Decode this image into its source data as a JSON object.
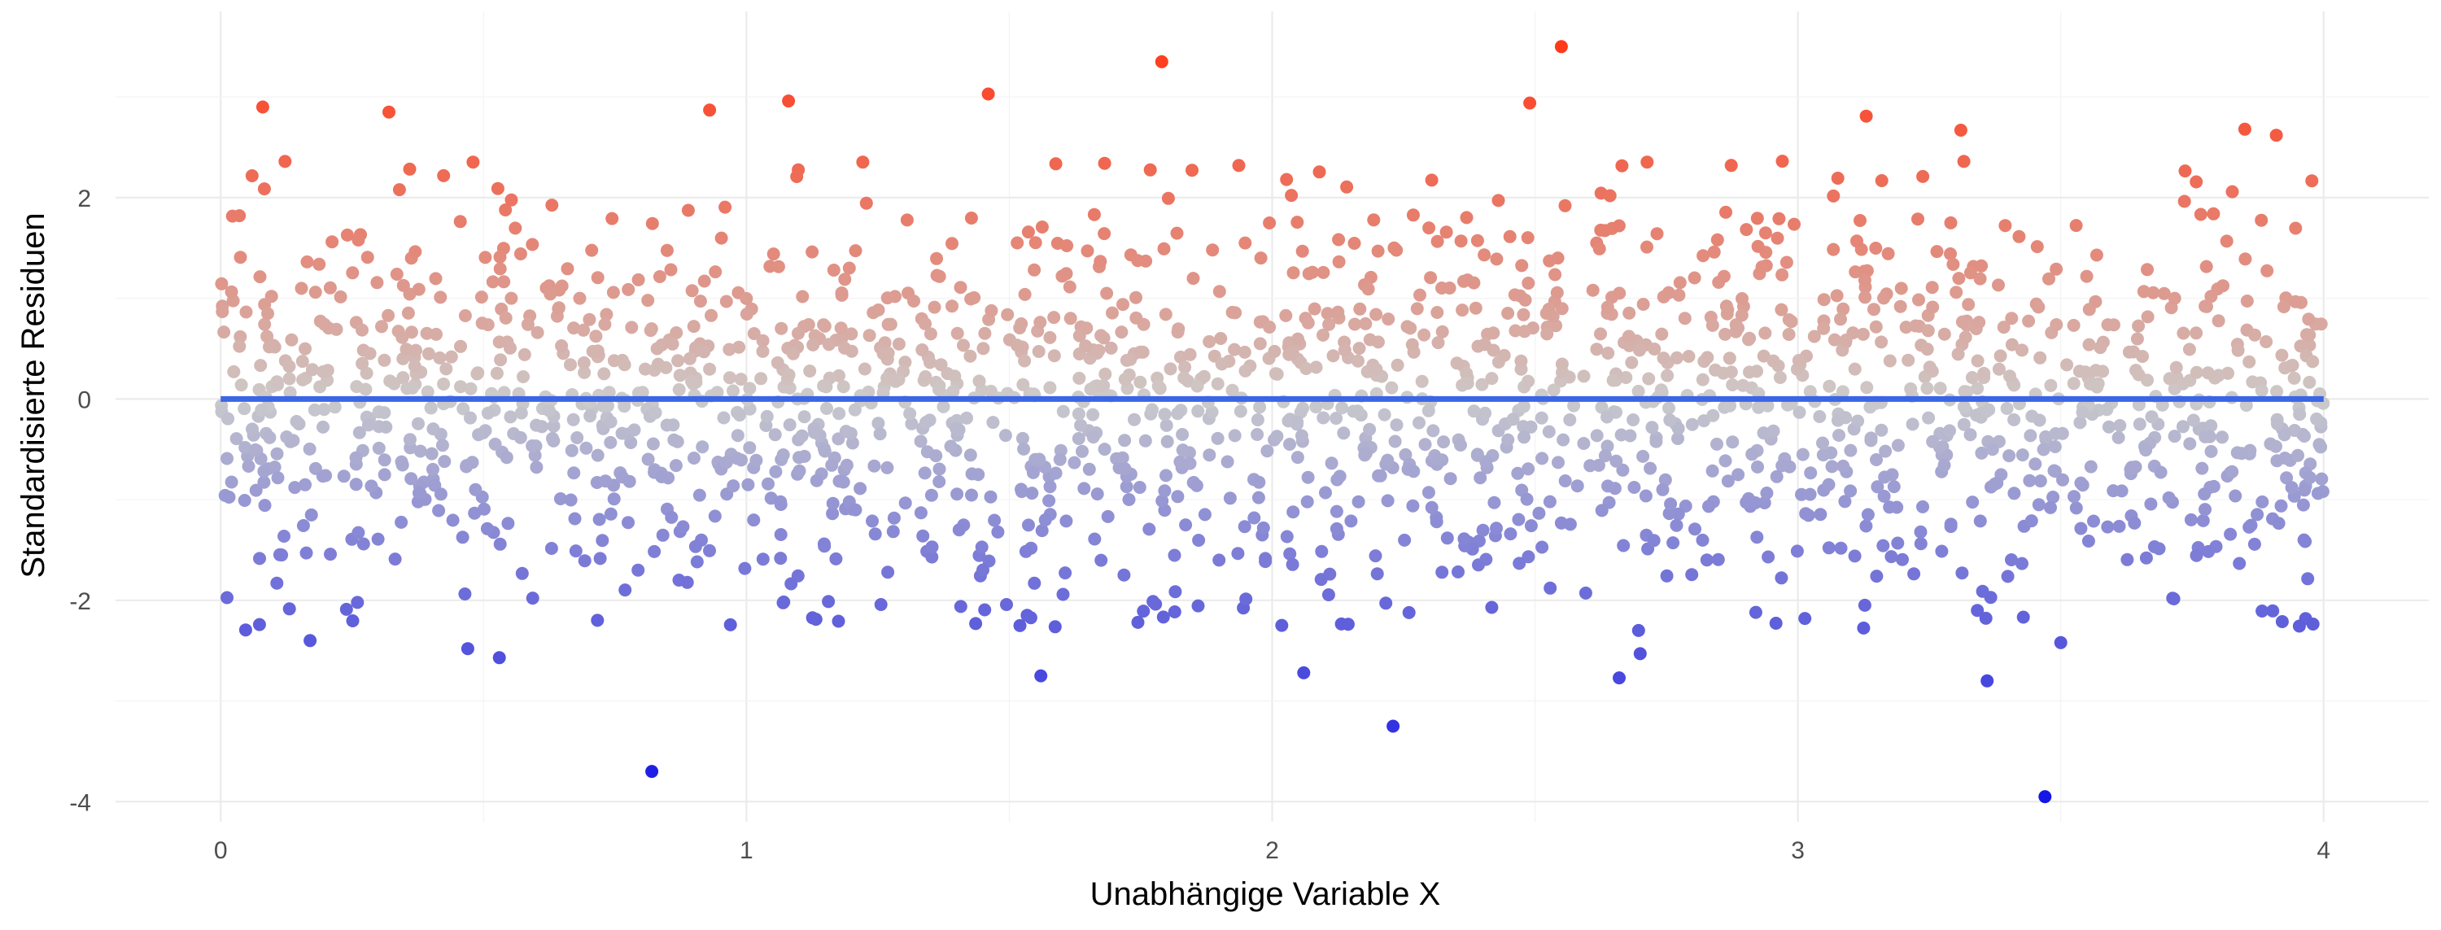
{
  "chart_data": {
    "type": "scatter",
    "title": "",
    "xlabel": "Unabhängige Variable X",
    "ylabel": "Standardisierte Residuen",
    "xlim": [
      -0.2,
      4.2
    ],
    "ylim": [
      -4.2,
      3.85
    ],
    "x_ticks": [
      0,
      1,
      2,
      3,
      4
    ],
    "x_tick_labels": [
      "0",
      "1",
      "2",
      "3",
      "4"
    ],
    "y_ticks": [
      -4,
      -2,
      0,
      2
    ],
    "y_tick_labels": [
      "-4",
      "-2",
      "0",
      "2"
    ],
    "grid": true,
    "legend": "none",
    "reference_line": {
      "y": 0,
      "color": "#3a66e6"
    },
    "color_scale": {
      "low": "#1414e6",
      "mid": "#cccccc",
      "high": "#ff3a1a",
      "domain": [
        -4,
        3.5
      ]
    },
    "n_points": 2000,
    "highlighted_points": [
      {
        "x": 0.08,
        "y": 2.9
      },
      {
        "x": 0.32,
        "y": 2.85
      },
      {
        "x": 0.93,
        "y": 2.87
      },
      {
        "x": 1.08,
        "y": 2.96
      },
      {
        "x": 1.46,
        "y": 3.03
      },
      {
        "x": 1.79,
        "y": 3.35
      },
      {
        "x": 2.55,
        "y": 3.5
      },
      {
        "x": 2.49,
        "y": 2.94
      },
      {
        "x": 3.13,
        "y": 2.81
      },
      {
        "x": 3.31,
        "y": 2.67
      },
      {
        "x": 3.85,
        "y": 2.68
      },
      {
        "x": 3.91,
        "y": 2.62
      },
      {
        "x": 0.17,
        "y": -2.4
      },
      {
        "x": 0.47,
        "y": -2.48
      },
      {
        "x": 0.53,
        "y": -2.57
      },
      {
        "x": 0.82,
        "y": -3.7
      },
      {
        "x": 1.56,
        "y": -2.75
      },
      {
        "x": 2.06,
        "y": -2.72
      },
      {
        "x": 2.23,
        "y": -3.25
      },
      {
        "x": 2.66,
        "y": -2.77
      },
      {
        "x": 2.7,
        "y": -2.53
      },
      {
        "x": 3.36,
        "y": -2.8
      },
      {
        "x": 3.47,
        "y": -3.95
      },
      {
        "x": 3.5,
        "y": -2.42
      }
    ]
  }
}
